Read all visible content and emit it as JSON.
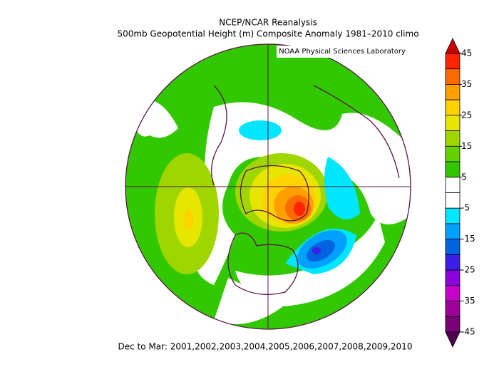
{
  "header": {
    "title": "NCEP/NCAR Reanalysis",
    "subtitle": "500mb Geopotential Height (m) Composite Anomaly 1981–2010 climo"
  },
  "credit": "NOAA Physical Sciences Laboratory",
  "footer": "Dec to Mar: 2001,2002,2003,2004,2005,2006,2007,2008,2009,2010",
  "colorbar": {
    "levels": [
      45,
      40,
      35,
      30,
      25,
      20,
      15,
      10,
      5,
      0,
      -5,
      -10,
      -15,
      -20,
      -25,
      -30,
      -35,
      -40,
      -45
    ],
    "colors": [
      "#ff2400",
      "#ff6a00",
      "#ffa000",
      "#ffd200",
      "#e6e600",
      "#a0d600",
      "#64d200",
      "#32c800",
      "#ffffff",
      "#ffffff",
      "#00e6ff",
      "#00a0ff",
      "#0064e0",
      "#3c1ee6",
      "#8c00e0",
      "#c800c8",
      "#a0009a",
      "#780078"
    ],
    "over_color": "#c80000",
    "under_color": "#500050",
    "ticks": [
      45,
      35,
      25,
      15,
      5,
      -5,
      -15,
      -25,
      -35,
      -45
    ]
  }
}
